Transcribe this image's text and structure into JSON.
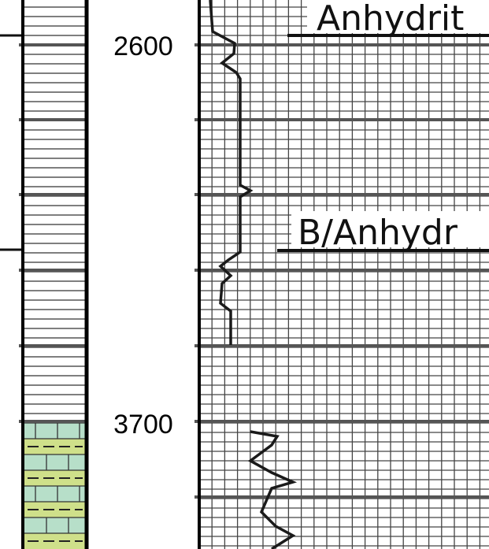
{
  "depth_labels": [
    "2600",
    "3700"
  ],
  "annotations": [
    "Anhydrit",
    "B/Anhydr"
  ]
}
